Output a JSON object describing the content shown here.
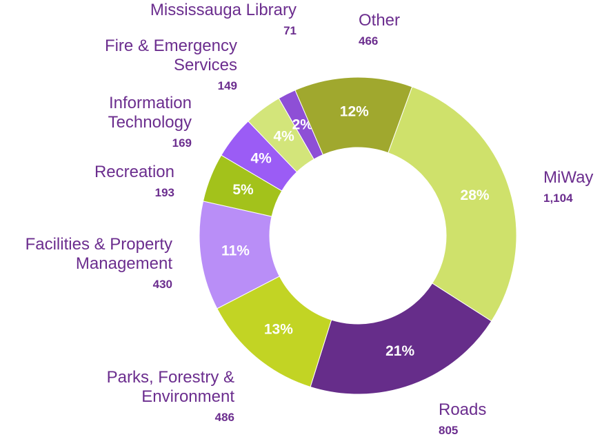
{
  "chart_data": {
    "type": "donut",
    "categories": [
      "MiWay",
      "Roads",
      "Parks, Forestry & Environment",
      "Facilities & Property Management",
      "Recreation",
      "Information Technology",
      "Fire & Emergency Services",
      "Mississauga Library",
      "Other"
    ],
    "values": [
      1104,
      805,
      486,
      430,
      193,
      169,
      149,
      71,
      466
    ],
    "value_labels": [
      "1,104",
      "805",
      "486",
      "430",
      "193",
      "169",
      "149",
      "71",
      "466"
    ],
    "percent_labels": [
      "28%",
      "21%",
      "13%",
      "11%",
      "5%",
      "4%",
      "4%",
      "2%",
      "12%"
    ],
    "colors": [
      "#cfe16b",
      "#662d8a",
      "#c2d424",
      "#b98ef7",
      "#a3c21b",
      "#9b5cf5",
      "#d3e57a",
      "#8e4fd6",
      "#a0a82e"
    ]
  }
}
